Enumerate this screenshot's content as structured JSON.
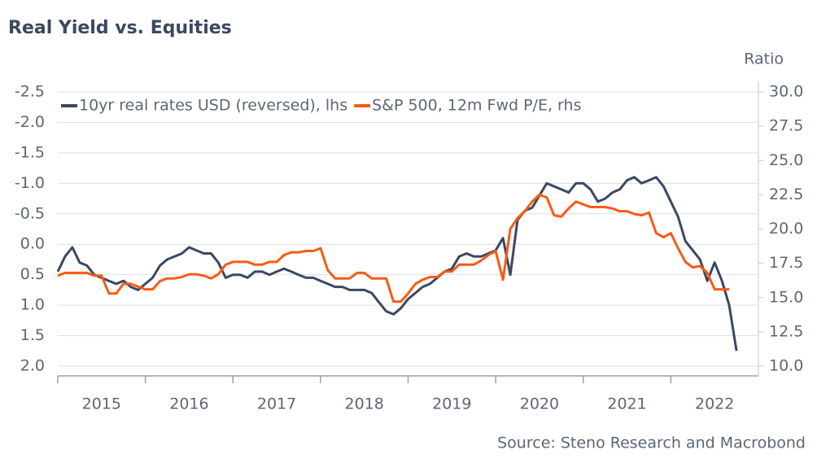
{
  "chart_data": {
    "type": "line",
    "title": "Real Yield vs. Equities",
    "y2_label": "Ratio",
    "source": "Source: Steno Research and Macrobond",
    "xlim": [
      2015,
      2023
    ],
    "xticks": [
      2015,
      2016,
      2017,
      2018,
      2019,
      2020,
      2021,
      2022
    ],
    "ylim": [
      -2.5,
      2.0
    ],
    "y_reversed": true,
    "yticks": [
      -2.5,
      {
        "value": -2,
        "label": "-2.0"
      },
      -1.5,
      {
        "value": -1,
        "label": "-1.0"
      },
      -0.5,
      {
        "value": 0,
        "label": "0.0"
      },
      0.5,
      {
        "value": 1,
        "label": "1.0"
      },
      1.5,
      {
        "value": 2,
        "label": "2.0"
      }
    ],
    "y2lim": [
      10,
      30
    ],
    "y2ticks": [
      {
        "value": 30,
        "label": "30.0"
      },
      27.5,
      {
        "value": 25,
        "label": "25.0"
      },
      22.5,
      {
        "value": 20,
        "label": "20.0"
      },
      17.5,
      {
        "value": 15,
        "label": "15.0"
      },
      12.5,
      {
        "value": 10,
        "label": "10.0"
      }
    ],
    "grid": true,
    "legend": "top-left",
    "series": [
      {
        "name": "10yr real rates USD (reversed), lhs",
        "color": "#3b4860",
        "axis": "y",
        "x_start": 2015,
        "x_step_months": 1,
        "values": [
          0.45,
          0.2,
          0.05,
          0.3,
          0.35,
          0.5,
          0.55,
          0.6,
          0.65,
          0.6,
          0.7,
          0.75,
          0.65,
          0.55,
          0.35,
          0.25,
          0.2,
          0.15,
          0.05,
          0.1,
          0.15,
          0.15,
          0.3,
          0.55,
          0.5,
          0.5,
          0.55,
          0.45,
          0.45,
          0.5,
          0.45,
          0.4,
          0.45,
          0.5,
          0.55,
          0.55,
          0.6,
          0.65,
          0.7,
          0.7,
          0.75,
          0.75,
          0.75,
          0.8,
          0.95,
          1.1,
          1.15,
          1.05,
          0.9,
          0.8,
          0.7,
          0.65,
          0.55,
          0.45,
          0.4,
          0.2,
          0.15,
          0.2,
          0.2,
          0.15,
          0.1,
          -0.1,
          0.5,
          -0.4,
          -0.55,
          -0.6,
          -0.8,
          -1.0,
          -0.95,
          -0.9,
          -0.85,
          -1.0,
          -1.0,
          -0.9,
          -0.7,
          -0.75,
          -0.85,
          -0.9,
          -1.05,
          -1.1,
          -1.0,
          -1.05,
          -1.1,
          -0.95,
          -0.7,
          -0.45,
          -0.05,
          0.1,
          0.25,
          0.6,
          0.3,
          0.6,
          1.0,
          1.75
        ]
      },
      {
        "name": "S&P 500, 12m Fwd P/E, rhs",
        "color": "#fa5a14",
        "axis": "y2",
        "x_start": 2015,
        "x_step_months": 1,
        "values": [
          16.6,
          16.8,
          16.8,
          16.8,
          16.8,
          16.6,
          16.6,
          15.3,
          15.3,
          16.0,
          16.0,
          15.8,
          15.6,
          15.6,
          16.2,
          16.4,
          16.4,
          16.5,
          16.7,
          16.7,
          16.6,
          16.4,
          16.7,
          17.4,
          17.6,
          17.6,
          17.6,
          17.4,
          17.4,
          17.6,
          17.6,
          18.1,
          18.3,
          18.3,
          18.4,
          18.4,
          18.6,
          17.0,
          16.4,
          16.4,
          16.4,
          16.8,
          16.8,
          16.4,
          16.4,
          16.4,
          14.7,
          14.7,
          15.3,
          16.0,
          16.3,
          16.5,
          16.5,
          16.9,
          16.9,
          17.4,
          17.4,
          17.4,
          17.7,
          18.1,
          18.4,
          16.3,
          20.0,
          20.8,
          21.3,
          22.0,
          22.5,
          22.3,
          21.0,
          20.9,
          21.5,
          22.0,
          21.8,
          21.6,
          21.6,
          21.6,
          21.5,
          21.3,
          21.3,
          21.1,
          21.0,
          21.2,
          19.7,
          19.4,
          19.7,
          18.6,
          17.6,
          17.2,
          17.3,
          16.8,
          15.6,
          15.6,
          15.6
        ]
      }
    ]
  }
}
